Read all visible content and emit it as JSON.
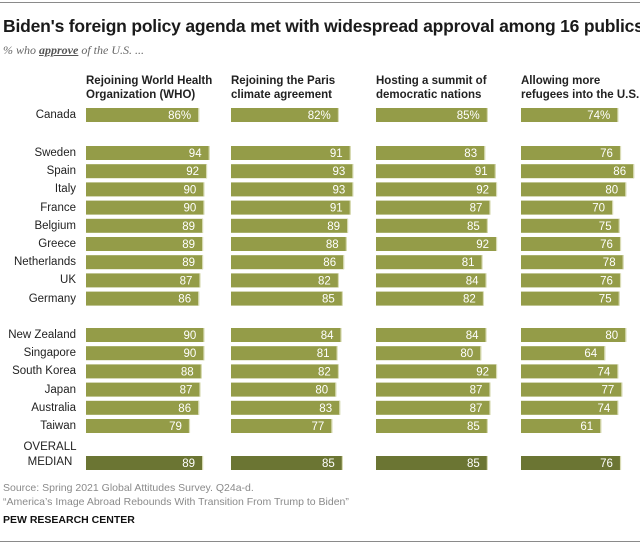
{
  "chart_data": {
    "type": "bar",
    "title": "Biden's foreign policy agenda met with widespread approval among 16 publics",
    "subtitle_prefix": "% who ",
    "subtitle_emphasis": "approve",
    "subtitle_suffix": " of the U.S. ...",
    "xlim": [
      0,
      100
    ],
    "series": [
      {
        "name": "Rejoining World Health Organization (WHO)",
        "line1": "Rejoining World Health",
        "line2": "Organization (WHO)"
      },
      {
        "name": "Rejoining the Paris climate agreement",
        "line1": "Rejoining the Paris",
        "line2": "climate agreement"
      },
      {
        "name": "Hosting a summit of democratic nations",
        "line1": "Hosting a summit of",
        "line2": "democratic nations"
      },
      {
        "name": "Allowing more refugees into the U.S.",
        "line1": "Allowing more",
        "line2": "refugees into the U.S."
      }
    ],
    "groups": [
      {
        "rows": [
          {
            "country": "Canada",
            "values": [
              86,
              82,
              85,
              74
            ],
            "percent_sign": true
          }
        ]
      },
      {
        "rows": [
          {
            "country": "Sweden",
            "values": [
              94,
              91,
              83,
              76
            ]
          },
          {
            "country": "Spain",
            "values": [
              92,
              93,
              91,
              86
            ]
          },
          {
            "country": "Italy",
            "values": [
              90,
              93,
              92,
              80
            ]
          },
          {
            "country": "France",
            "values": [
              90,
              91,
              87,
              70
            ]
          },
          {
            "country": "Belgium",
            "values": [
              89,
              89,
              85,
              75
            ]
          },
          {
            "country": "Greece",
            "values": [
              89,
              88,
              92,
              76
            ]
          },
          {
            "country": "Netherlands",
            "values": [
              89,
              86,
              81,
              78
            ]
          },
          {
            "country": "UK",
            "values": [
              87,
              82,
              84,
              76
            ]
          },
          {
            "country": "Germany",
            "values": [
              86,
              85,
              82,
              75
            ]
          }
        ]
      },
      {
        "rows": [
          {
            "country": "New Zealand",
            "values": [
              90,
              84,
              84,
              80
            ]
          },
          {
            "country": "Singapore",
            "values": [
              90,
              81,
              80,
              64
            ]
          },
          {
            "country": "South Korea",
            "values": [
              88,
              82,
              92,
              74
            ]
          },
          {
            "country": "Japan",
            "values": [
              87,
              80,
              87,
              77
            ]
          },
          {
            "country": "Australia",
            "values": [
              86,
              83,
              87,
              74
            ]
          },
          {
            "country": "Taiwan",
            "values": [
              79,
              77,
              85,
              61
            ]
          }
        ]
      }
    ],
    "median": {
      "label_line1": "OVERALL",
      "label_line2": "MEDIAN",
      "values": [
        89,
        85,
        85,
        76
      ]
    },
    "colors": {
      "bar": "#949c48",
      "median_bar": "#6b7533",
      "bar_label": "#ffffff"
    }
  },
  "footer": {
    "source": "Source: Spring 2021 Global Attitudes Survey. Q24a-d.",
    "report": "“America’s Image Abroad Rebounds With Transition From Trump to Biden”",
    "brand": "PEW RESEARCH CENTER"
  }
}
